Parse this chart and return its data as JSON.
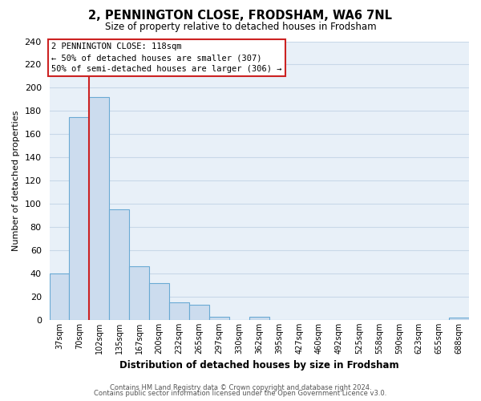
{
  "title": "2, PENNINGTON CLOSE, FRODSHAM, WA6 7NL",
  "subtitle": "Size of property relative to detached houses in Frodsham",
  "xlabel": "Distribution of detached houses by size in Frodsham",
  "ylabel": "Number of detached properties",
  "bar_labels": [
    "37sqm",
    "70sqm",
    "102sqm",
    "135sqm",
    "167sqm",
    "200sqm",
    "232sqm",
    "265sqm",
    "297sqm",
    "330sqm",
    "362sqm",
    "395sqm",
    "427sqm",
    "460sqm",
    "492sqm",
    "525sqm",
    "558sqm",
    "590sqm",
    "623sqm",
    "655sqm",
    "688sqm"
  ],
  "bar_values": [
    40,
    175,
    192,
    95,
    46,
    32,
    15,
    13,
    3,
    0,
    3,
    0,
    0,
    0,
    0,
    0,
    0,
    0,
    0,
    0,
    2
  ],
  "bar_color": "#ccdcee",
  "bar_edge_color": "#6aaad4",
  "grid_color": "#c8d8e8",
  "plot_bg_color": "#e8f0f8",
  "fig_bg_color": "#ffffff",
  "redline_x": 2.0,
  "annotation_title": "2 PENNINGTON CLOSE: 118sqm",
  "annotation_line1": "← 50% of detached houses are smaller (307)",
  "annotation_line2": "50% of semi-detached houses are larger (306) →",
  "ylim": [
    0,
    240
  ],
  "yticks": [
    0,
    20,
    40,
    60,
    80,
    100,
    120,
    140,
    160,
    180,
    200,
    220,
    240
  ],
  "footer1": "Contains HM Land Registry data © Crown copyright and database right 2024.",
  "footer2": "Contains public sector information licensed under the Open Government Licence v3.0."
}
